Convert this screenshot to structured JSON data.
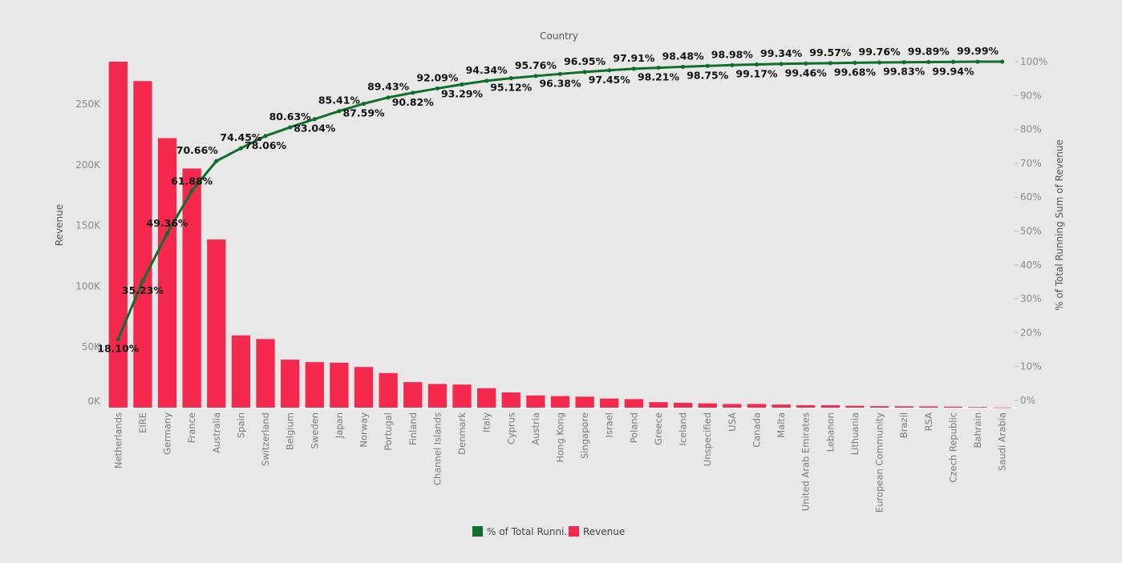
{
  "chart_data": {
    "type": "bar",
    "title": "",
    "x_axis_title": "Country",
    "ylabel": "Revenue",
    "ylabel_right": "% of Total Running Sum of Revenue",
    "categories": [
      "Netherlands",
      "EIRE",
      "Germany",
      "France",
      "Australia",
      "Spain",
      "Switzerland",
      "Belgium",
      "Sweden",
      "Japan",
      "Norway",
      "Portugal",
      "Finland",
      "Channel Islands",
      "Denmark",
      "Italy",
      "Cyprus",
      "Austria",
      "Hong Kong",
      "Singapore",
      "Israel",
      "Poland",
      "Greece",
      "Iceland",
      "Unspecified",
      "USA",
      "Canada",
      "Malta",
      "United Arab Emirates",
      "Lebanon",
      "Lithuania",
      "European Community",
      "Brazil",
      "RSA",
      "Czech Republic",
      "Bahrain",
      "Saudi Arabia"
    ],
    "series": [
      {
        "name": "Revenue",
        "kind": "bar",
        "axis": "left",
        "color": "#f5284d",
        "values": [
          285000,
          269000,
          222000,
          197000,
          138500,
          59500,
          56500,
          39500,
          37500,
          37000,
          33500,
          28500,
          21000,
          19500,
          19000,
          16000,
          12500,
          10000,
          9500,
          9000,
          7500,
          7000,
          4500,
          4000,
          3500,
          3000,
          3000,
          2500,
          2000,
          2000,
          1500,
          1200,
          1100,
          1000,
          800,
          500,
          100
        ]
      },
      {
        "name": "% of Total Runni..",
        "kind": "line",
        "axis": "right",
        "color": "#0f6e2a",
        "values": [
          18.1,
          35.23,
          49.36,
          61.88,
          70.66,
          74.45,
          78.06,
          80.63,
          83.04,
          85.41,
          87.59,
          89.43,
          90.82,
          92.09,
          93.29,
          94.34,
          95.12,
          95.76,
          96.38,
          96.95,
          97.45,
          97.91,
          98.21,
          98.48,
          98.75,
          98.98,
          99.17,
          99.34,
          99.46,
          99.57,
          99.68,
          99.76,
          99.83,
          99.89,
          99.94,
          99.99,
          100.0
        ],
        "labels": [
          "18.10%",
          "35.23%",
          "49.36%",
          "61.88%",
          "70.66%",
          "74.45%",
          "78.06%",
          "80.63%",
          "83.04%",
          "85.41%",
          "87.59%",
          "89.43%",
          "90.82%",
          "92.09%",
          "93.29%",
          "94.34%",
          "95.12%",
          "95.76%",
          "96.38%",
          "96.95%",
          "97.45%",
          "97.91%",
          "98.21%",
          "98.48%",
          "98.75%",
          "98.98%",
          "99.17%",
          "99.34%",
          "99.46%",
          "99.57%",
          "99.68%",
          "99.76%",
          "99.83%",
          "99.89%",
          "99.94%",
          "99.99%",
          ""
        ]
      }
    ],
    "ylim": [
      0,
      285000
    ],
    "yticks": [
      0,
      50000,
      100000,
      150000,
      200000,
      250000
    ],
    "ytick_labels": [
      "0K",
      "50K",
      "100K",
      "150K",
      "200K",
      "250K"
    ],
    "ylim_right": [
      0,
      100
    ],
    "yticks_right": [
      0,
      10,
      20,
      30,
      40,
      50,
      60,
      70,
      80,
      90,
      100
    ],
    "ytick_labels_right": [
      "0%",
      "10%",
      "20%",
      "30%",
      "40%",
      "50%",
      "60%",
      "70%",
      "80%",
      "90%",
      "100%"
    ],
    "legend": {
      "placement": "bottom-center",
      "items": [
        {
          "label": "% of Total Runni..",
          "color": "#0f6e2a"
        },
        {
          "label": "Revenue",
          "color": "#f5284d"
        }
      ]
    },
    "grid": false
  }
}
